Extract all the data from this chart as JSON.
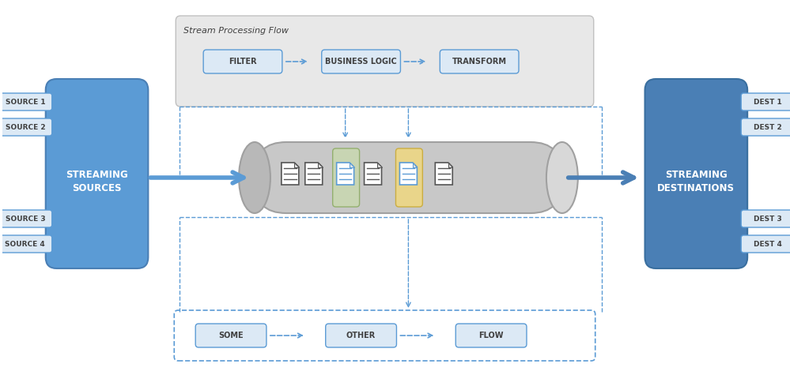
{
  "bg_color": "#ffffff",
  "blue_dark": "#4a7fb5",
  "blue_medium": "#5b9bd5",
  "blue_light": "#a9c6e0",
  "blue_box": "#5b9bd5",
  "blue_box_light": "#dce9f5",
  "gray_pipeline": "#d0d0d0",
  "gray_light": "#e8e8e8",
  "gray_border": "#b0b0b0",
  "green_highlight": "#c6d9b0",
  "yellow_highlight": "#f5e4a0",
  "dashed_blue": "#5b9bd5",
  "text_dark": "#404040",
  "text_white": "#ffffff",
  "text_blue": "#4a7fb5",
  "sources": [
    "SOURCE 1",
    "SOURCE 2",
    "SOURCE 3",
    "SOURCE 4"
  ],
  "dests": [
    "DEST 1",
    "DEST 2",
    "DEST 3",
    "DEST 4"
  ],
  "flow_top": [
    "FILTER",
    "BUSINESS LOGIC",
    "TRANSFORM"
  ],
  "flow_bottom": [
    "SOME",
    "OTHER",
    "FLOW"
  ],
  "label_streaming_sources": "STREAMING\nSOURCES",
  "label_streaming_dests": "STREAMING\nDESTINATIONS",
  "stream_processing_label": "Stream Processing Flow"
}
